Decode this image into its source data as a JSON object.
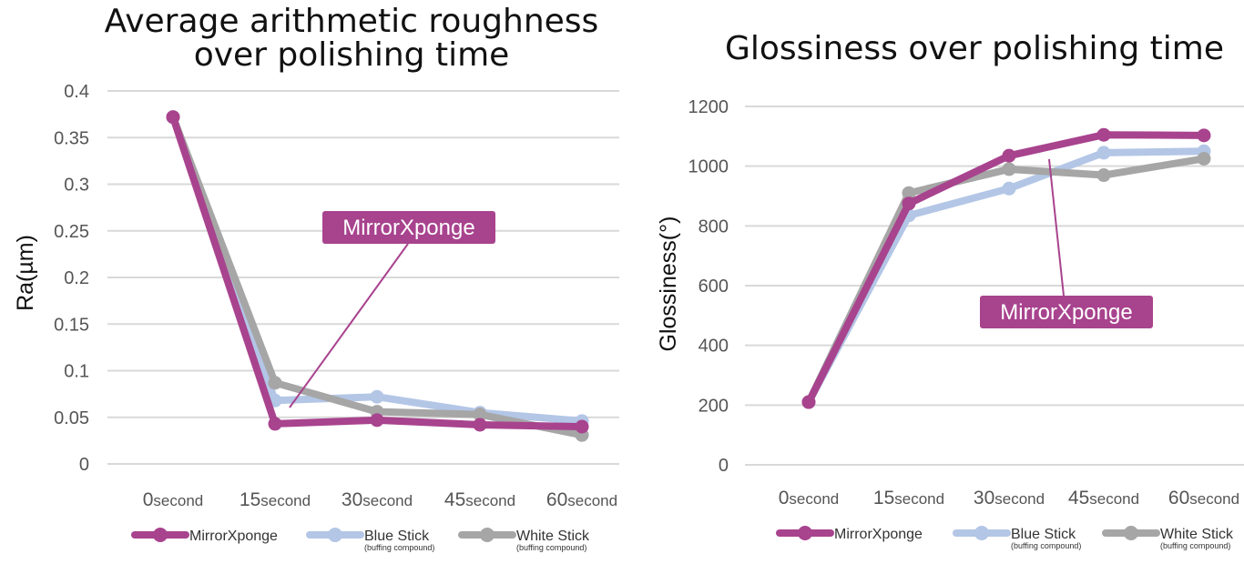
{
  "chart_data": [
    {
      "type": "line",
      "title": [
        "Average arithmetic roughness",
        "over polishing time"
      ],
      "ylabel": "Ra(µm)",
      "xlabel": "",
      "ylim": [
        0,
        0.4
      ],
      "yticks": [
        "0",
        "0.05",
        "0.1",
        "0.15",
        "0.2",
        "0.25",
        "0.3",
        "0.35",
        "0.4"
      ],
      "categories": [
        {
          "num": "0",
          "unit": "second"
        },
        {
          "num": "15",
          "unit": "second"
        },
        {
          "num": "30",
          "unit": "second"
        },
        {
          "num": "45",
          "unit": "second"
        },
        {
          "num": "60",
          "unit": "second"
        }
      ],
      "grid": true,
      "series": [
        {
          "name": "MirrorXponge",
          "sub": "",
          "color": "#a8438e",
          "values": [
            0.372,
            0.043,
            0.047,
            0.042,
            0.04
          ]
        },
        {
          "name": "Blue Stick",
          "sub": "(buffing compound)",
          "color": "#b3c6e6",
          "values": [
            0.372,
            0.068,
            0.072,
            0.055,
            0.046
          ]
        },
        {
          "name": "White Stick",
          "sub": "(buffing compound)",
          "color": "#a6a6a6",
          "values": [
            0.372,
            0.087,
            0.056,
            0.053,
            0.031
          ]
        }
      ],
      "callout": "MirrorXponge",
      "legend_position": "bottom"
    },
    {
      "type": "line",
      "title": [
        "Glossiness over polishing time"
      ],
      "ylabel": "Glossiness(°)",
      "xlabel": "",
      "ylim": [
        0,
        1200
      ],
      "yticks": [
        "0",
        "200",
        "400",
        "600",
        "800",
        "1000",
        "1200"
      ],
      "categories": [
        {
          "num": "0",
          "unit": "second"
        },
        {
          "num": "15",
          "unit": "second"
        },
        {
          "num": "30",
          "unit": "second"
        },
        {
          "num": "45",
          "unit": "second"
        },
        {
          "num": "60",
          "unit": "second"
        }
      ],
      "grid": true,
      "series": [
        {
          "name": "MirrorXponge",
          "sub": "",
          "color": "#a8438e",
          "values": [
            210,
            875,
            1035,
            1105,
            1103
          ]
        },
        {
          "name": "Blue Stick",
          "sub": "(buffing compound)",
          "color": "#b3c6e6",
          "values": [
            210,
            835,
            925,
            1045,
            1050
          ]
        },
        {
          "name": "White Stick",
          "sub": "(buffing compound)",
          "color": "#a6a6a6",
          "values": [
            210,
            910,
            990,
            970,
            1025
          ]
        }
      ],
      "callout": "MirrorXponge",
      "legend_position": "bottom"
    }
  ]
}
